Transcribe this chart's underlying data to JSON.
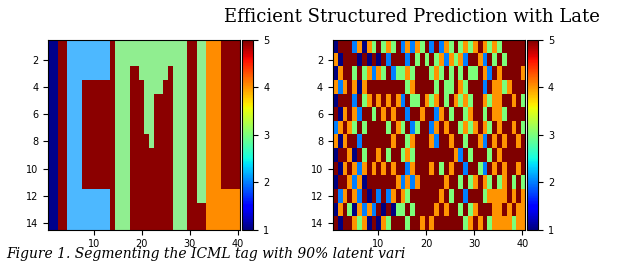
{
  "title": "Efficient Structured Prediction with Late",
  "caption": "Figure 1. Segmenting the ICML tag with 90% latent vari",
  "vmin": 1,
  "vmax": 5,
  "colorbar_ticks": [
    1,
    2,
    3,
    4,
    5
  ],
  "xticks": [
    10,
    20,
    30,
    40
  ],
  "yticks": [
    2,
    4,
    6,
    8,
    10,
    12,
    14
  ],
  "nrows": 14,
  "ncols": 40,
  "title_fontsize": 13,
  "caption_fontsize": 10,
  "colors_left": [
    "#00008B",
    "#4DB8FF",
    "#90EE90",
    "#FF8C00",
    "#8B0000"
  ]
}
